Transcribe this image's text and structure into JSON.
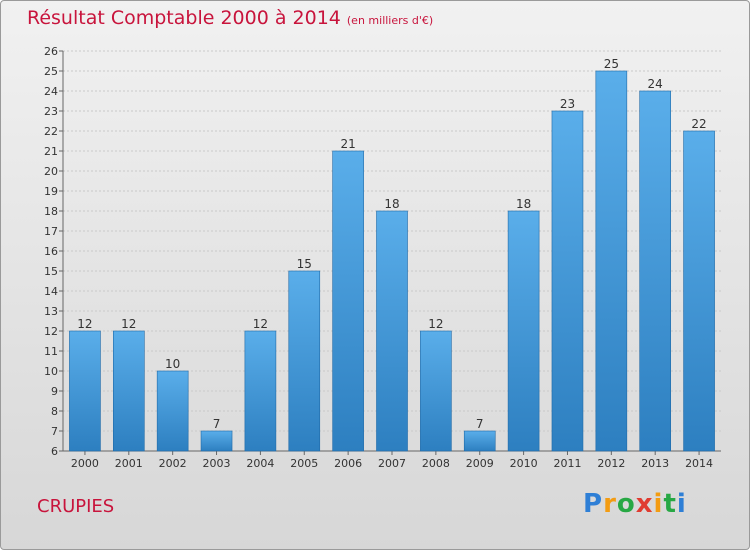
{
  "chart_data": {
    "type": "bar",
    "title": "Résultat Comptable 2000 à 2014",
    "unit_note": "(en milliers d'€)",
    "categories": [
      "2000",
      "2001",
      "2002",
      "2003",
      "2004",
      "2005",
      "2006",
      "2007",
      "2008",
      "2009",
      "2010",
      "2011",
      "2012",
      "2013",
      "2014"
    ],
    "values": [
      12,
      12,
      10,
      7,
      12,
      15,
      21,
      18,
      12,
      7,
      18,
      23,
      25,
      24,
      22
    ],
    "ylim": [
      6,
      26
    ],
    "ytick_step": 1,
    "grid": true,
    "xlabel": "",
    "ylabel": ""
  },
  "commune": "CRUPIES",
  "logo": {
    "letters": [
      "P",
      "r",
      "o",
      "x",
      "i",
      "t",
      "i"
    ],
    "colors": [
      "#2e7fd6",
      "#f39c12",
      "#27a844",
      "#e03c31",
      "#f39c12",
      "#27a844",
      "#2e7fd6"
    ]
  },
  "colors": {
    "title": "#c8143c",
    "bar_top": "#5aaeea",
    "bar_bottom": "#2d7fc0",
    "bar_edge": "#1f6aa8",
    "grid": "#c9c9c9"
  }
}
